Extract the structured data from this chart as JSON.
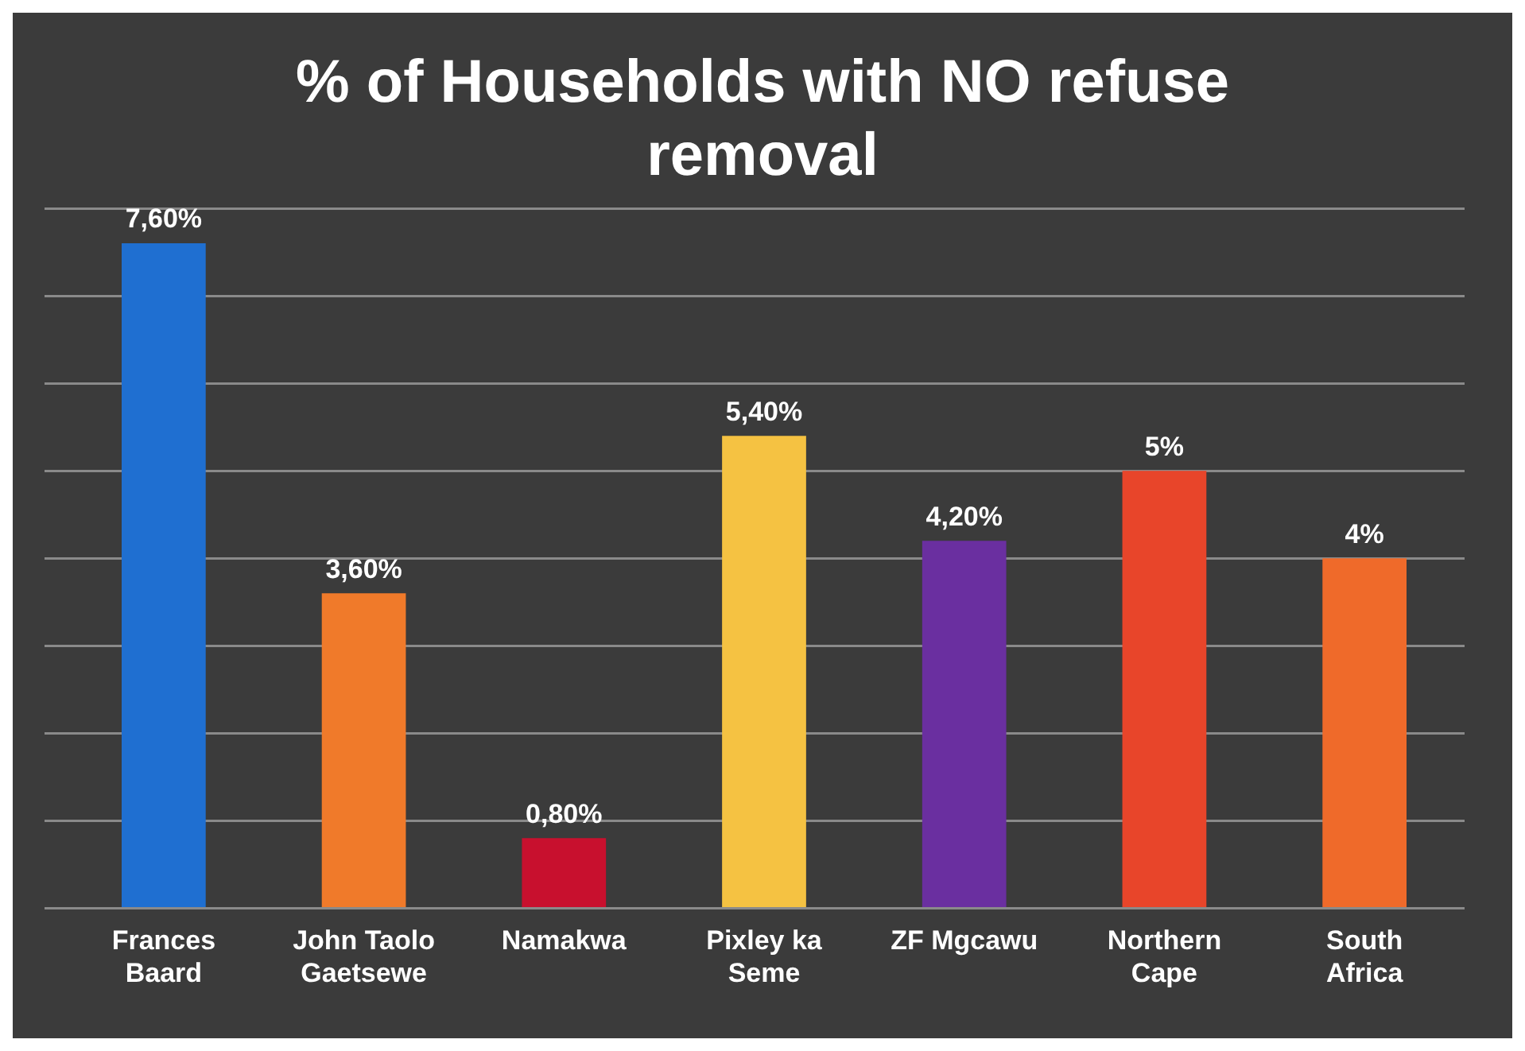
{
  "chart_data": {
    "type": "bar",
    "title": "% of Households with NO refuse removal",
    "categories": [
      "Frances Baard",
      "John Taolo Gaetsewe",
      "Namakwa",
      "Pixley ka Seme",
      "ZF Mgcawu",
      "Northern Cape",
      "South Africa"
    ],
    "values": [
      7.6,
      3.6,
      0.8,
      5.4,
      4.2,
      5,
      4
    ],
    "colors": [
      "#1f6fd1",
      "#f07a2a",
      "#c8102e",
      "#f5c242",
      "#6a2fa0",
      "#e8452a",
      "#ef6a2a"
    ],
    "value_labels": [
      "7,60%",
      "3,60%",
      "0,80%",
      "5,40%",
      "4,20%",
      "5%",
      "4%"
    ],
    "ylim": [
      0,
      8
    ],
    "yticks": [
      {
        "value": 0,
        "label": null
      },
      {
        "value": 1,
        "label": null
      },
      {
        "value": 2,
        "label": null
      },
      {
        "value": 3,
        "label": null
      },
      {
        "value": 4,
        "label": null
      },
      {
        "value": 5,
        "label": null
      },
      {
        "value": 6,
        "label": null
      },
      {
        "value": 7,
        "label": null
      },
      {
        "value": 8,
        "label": null
      }
    ],
    "tick_labels": "x",
    "grid": "y",
    "legend": false
  }
}
